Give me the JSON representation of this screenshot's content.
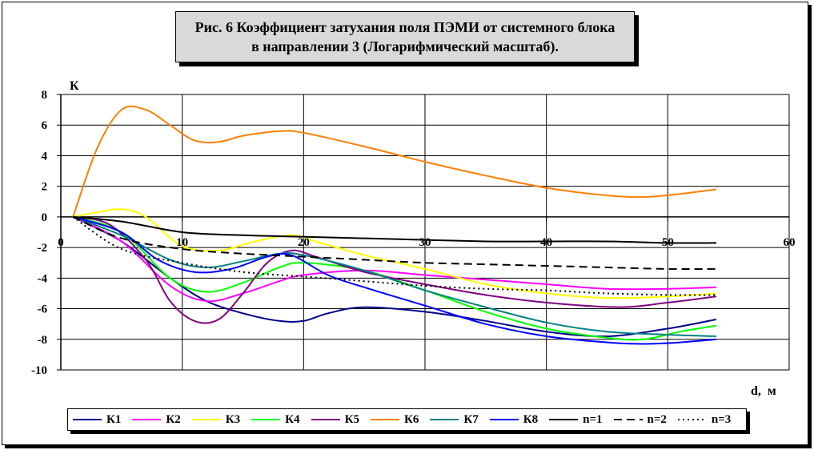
{
  "title_lines": [
    "Рис. 6 Коэффициент затухания поля ПЭМИ от системного блока",
    "в направлении 3 (Логарифмический масштаб)."
  ],
  "chart_data": {
    "type": "line",
    "title": "Рис. 6 Коэффициент затухания поля ПЭМИ от системного блока в направлении 3 (Логарифмический масштаб).",
    "xlabel": "d,  м",
    "ylabel": "К",
    "xlim": [
      0,
      60
    ],
    "ylim": [
      -10,
      8
    ],
    "x_ticks": [
      0,
      10,
      20,
      30,
      40,
      50,
      60
    ],
    "y_ticks": [
      8,
      6,
      4,
      2,
      0,
      -2,
      -4,
      -6,
      -8,
      -10
    ],
    "x_tick_labels": [
      "0",
      "10",
      "20",
      "30",
      "40",
      "50",
      "60"
    ],
    "y_tick_labels": [
      "8",
      "6",
      "4",
      "2",
      "0",
      "-2",
      "-4",
      "-6",
      "-8",
      "-10"
    ],
    "grid": true,
    "legend_position": "bottom",
    "series": [
      {
        "name": "К1",
        "color": "#00008B",
        "dash": "solid",
        "x": [
          1,
          5,
          9,
          12,
          15,
          18,
          20,
          22,
          25,
          30,
          35,
          40,
          45,
          50,
          54
        ],
        "y": [
          0,
          -1.6,
          -4.0,
          -5.5,
          -6.3,
          -6.8,
          -6.8,
          -6.3,
          -5.9,
          -6.2,
          -6.8,
          -7.5,
          -7.8,
          -7.3,
          -6.7
        ]
      },
      {
        "name": "К2",
        "color": "#FF00FF",
        "dash": "solid",
        "x": [
          1,
          5,
          9,
          12,
          15,
          18,
          20,
          25,
          30,
          35,
          40,
          45,
          50,
          54
        ],
        "y": [
          0,
          -1.6,
          -4.5,
          -5.5,
          -5.0,
          -4.2,
          -3.8,
          -3.5,
          -3.8,
          -4.1,
          -4.4,
          -4.7,
          -4.7,
          -4.6
        ]
      },
      {
        "name": "К3",
        "color": "#FFFF00",
        "dash": "solid",
        "x": [
          1,
          3,
          5,
          7,
          10,
          13,
          16,
          19,
          21,
          25,
          30,
          35,
          40,
          45,
          50,
          54
        ],
        "y": [
          0,
          0.3,
          0.5,
          0.0,
          -1.9,
          -2.2,
          -1.6,
          -1.2,
          -1.6,
          -2.5,
          -3.4,
          -4.4,
          -5.0,
          -5.3,
          -5.2,
          -5.0
        ]
      },
      {
        "name": "К4",
        "color": "#00FF00",
        "dash": "solid",
        "x": [
          1,
          5,
          9,
          12,
          15,
          18,
          20,
          25,
          30,
          35,
          40,
          45,
          48,
          51,
          54
        ],
        "y": [
          0,
          -1.0,
          -4.0,
          -4.9,
          -4.3,
          -3.3,
          -3.0,
          -3.5,
          -4.8,
          -6.2,
          -7.3,
          -7.9,
          -8.0,
          -7.5,
          -7.1
        ]
      },
      {
        "name": "К5",
        "color": "#800080",
        "dash": "solid",
        "x": [
          1,
          4,
          7,
          9,
          11,
          13,
          15,
          17,
          19,
          21,
          25,
          30,
          35,
          40,
          46,
          50,
          54
        ],
        "y": [
          0,
          -0.5,
          -2.8,
          -5.5,
          -6.8,
          -6.7,
          -5.0,
          -3.0,
          -2.2,
          -2.6,
          -3.6,
          -4.4,
          -5.1,
          -5.6,
          -5.9,
          -5.6,
          -5.2
        ]
      },
      {
        "name": "К6",
        "color": "#FF7F00",
        "dash": "solid",
        "x": [
          1,
          3,
          5,
          7,
          9,
          11,
          13,
          15,
          18,
          20,
          25,
          30,
          35,
          40,
          45,
          48,
          51,
          54
        ],
        "y": [
          0,
          4.5,
          7.0,
          7.0,
          6.0,
          5.0,
          4.9,
          5.3,
          5.6,
          5.5,
          4.6,
          3.6,
          2.7,
          1.9,
          1.4,
          1.3,
          1.5,
          1.8
        ]
      },
      {
        "name": "К7",
        "color": "#008080",
        "dash": "solid",
        "x": [
          1,
          5,
          9,
          12,
          15,
          18,
          20,
          25,
          30,
          35,
          40,
          45,
          50,
          54
        ],
        "y": [
          0,
          -1.2,
          -2.8,
          -3.3,
          -2.9,
          -2.4,
          -2.5,
          -3.5,
          -4.8,
          -5.9,
          -6.9,
          -7.5,
          -7.7,
          -7.8
        ]
      },
      {
        "name": "К8",
        "color": "#0000FF",
        "dash": "solid",
        "x": [
          1,
          5,
          8,
          11,
          14,
          17,
          19,
          22,
          25,
          30,
          35,
          40,
          45,
          48,
          51,
          54
        ],
        "y": [
          0,
          -1.0,
          -2.8,
          -3.6,
          -3.4,
          -2.6,
          -2.5,
          -3.8,
          -4.6,
          -5.8,
          -7.0,
          -7.8,
          -8.2,
          -8.3,
          -8.2,
          -8.0
        ]
      },
      {
        "name": "n=1",
        "color": "#000000",
        "dash": "solid",
        "x": [
          1,
          5,
          10,
          15,
          20,
          25,
          30,
          35,
          40,
          45,
          50,
          54
        ],
        "y": [
          0,
          -0.3,
          -1.0,
          -1.2,
          -1.3,
          -1.4,
          -1.5,
          -1.6,
          -1.6,
          -1.6,
          -1.7,
          -1.7
        ]
      },
      {
        "name": "n=2",
        "color": "#000000",
        "dash": "dash",
        "x": [
          1,
          5,
          10,
          15,
          20,
          25,
          30,
          35,
          40,
          45,
          50,
          54
        ],
        "y": [
          0,
          -1.4,
          -2.1,
          -2.4,
          -2.6,
          -2.8,
          -3.0,
          -3.1,
          -3.2,
          -3.3,
          -3.4,
          -3.4
        ]
      },
      {
        "name": "n=3",
        "color": "#000000",
        "dash": "dot",
        "x": [
          1,
          5,
          10,
          15,
          20,
          25,
          30,
          35,
          40,
          45,
          50,
          54
        ],
        "y": [
          0,
          -2.1,
          -3.0,
          -3.6,
          -3.9,
          -4.2,
          -4.5,
          -4.7,
          -4.8,
          -5.0,
          -5.1,
          -5.1
        ]
      }
    ]
  }
}
